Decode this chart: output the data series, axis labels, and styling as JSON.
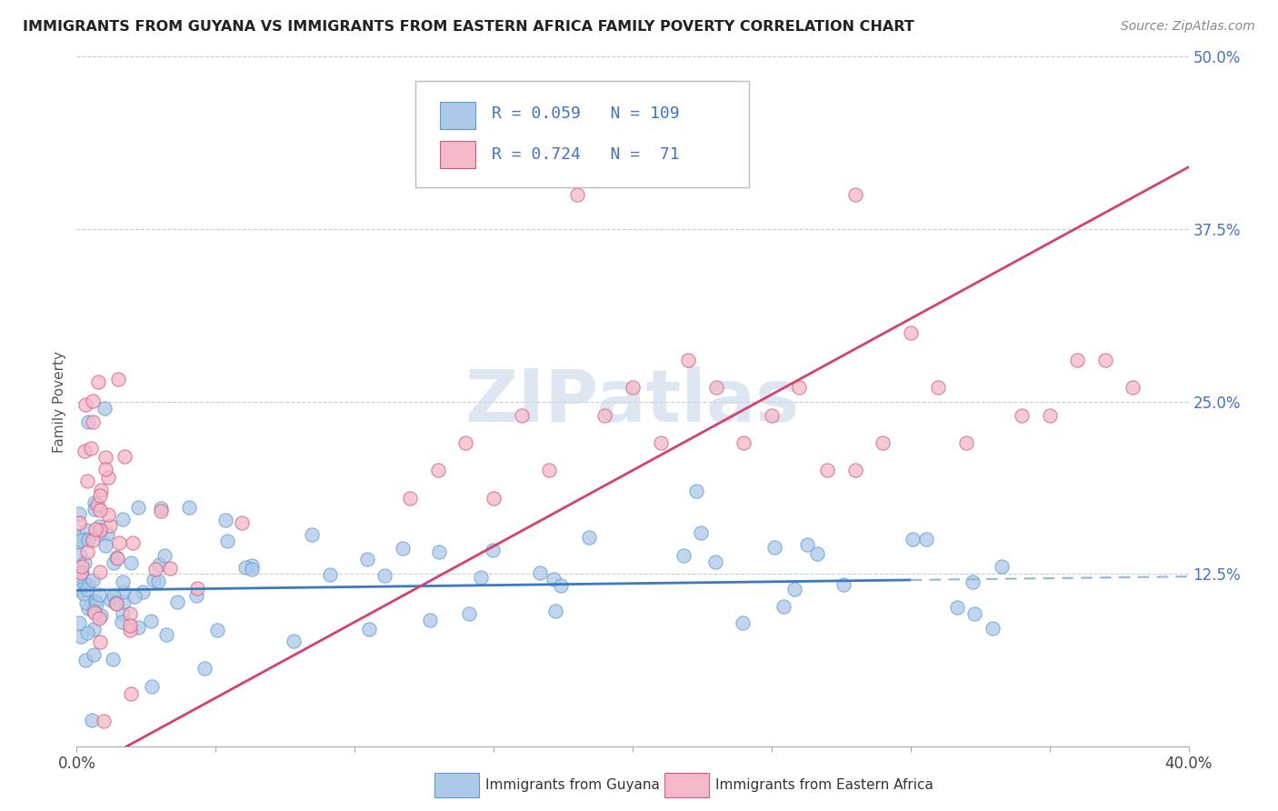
{
  "title": "IMMIGRANTS FROM GUYANA VS IMMIGRANTS FROM EASTERN AFRICA FAMILY POVERTY CORRELATION CHART",
  "source": "Source: ZipAtlas.com",
  "ylabel": "Family Poverty",
  "xlim": [
    0.0,
    0.4
  ],
  "ylim": [
    0.0,
    0.5
  ],
  "ytick_positions": [
    0.0,
    0.125,
    0.25,
    0.375,
    0.5
  ],
  "yticklabels": [
    "",
    "12.5%",
    "25.0%",
    "37.5%",
    "50.0%"
  ],
  "blue_R": 0.059,
  "blue_N": 109,
  "pink_R": 0.724,
  "pink_N": 71,
  "blue_fill": "#aec8e8",
  "blue_edge": "#5a9fd4",
  "pink_fill": "#f4b8c8",
  "pink_edge": "#d45a80",
  "blue_line": "#3a7abf",
  "pink_line": "#d44070",
  "blue_line_dashed": "#90b8d8",
  "watermark_color": "#c8d8e8"
}
